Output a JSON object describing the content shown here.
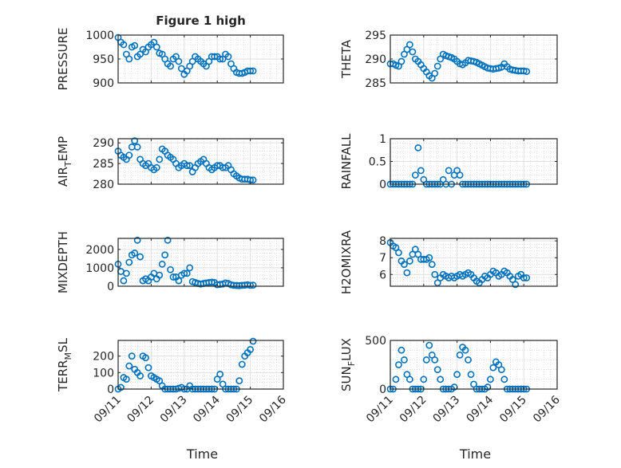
{
  "chart_data": [
    {
      "type": "scatter",
      "title": "Figure 1 high",
      "ylabel": "PRESSURE",
      "ylim": [
        900,
        1000
      ],
      "yticks": [
        900,
        950,
        1000
      ],
      "xlabel": "",
      "values": [
        995,
        985,
        980,
        960,
        950,
        975,
        978,
        955,
        960,
        970,
        965,
        975,
        980,
        985,
        975,
        962,
        960,
        950,
        940,
        935,
        950,
        955,
        945,
        930,
        918,
        925,
        935,
        945,
        955,
        950,
        945,
        940,
        935,
        945,
        955,
        955,
        955,
        950,
        950,
        960,
        955,
        940,
        930,
        922,
        920,
        920,
        922,
        925,
        925,
        925
      ]
    },
    {
      "type": "scatter",
      "title": "",
      "ylabel": "THETA",
      "ylim": [
        285,
        295
      ],
      "yticks": [
        285,
        290,
        295
      ],
      "xlabel": "",
      "values": [
        289,
        289,
        288.7,
        288.5,
        289.5,
        291,
        292,
        293,
        291.5,
        290,
        289.5,
        288.8,
        288,
        287.3,
        286.5,
        286,
        287,
        288.5,
        290,
        291,
        290.7,
        290.5,
        290.3,
        290,
        289.5,
        289,
        288.8,
        289.2,
        289.7,
        289.6,
        289.5,
        289.3,
        289,
        288.7,
        288.4,
        288.1,
        288,
        287.9,
        288,
        288.1,
        288.3,
        289,
        288.4,
        287.9,
        287.7,
        287.6,
        287.5,
        287.5,
        287.5,
        287.4
      ]
    },
    {
      "type": "scatter",
      "title": "",
      "ylabel": "AIR_TEMP",
      "ylim": [
        280,
        291
      ],
      "yticks": [
        280,
        285,
        290
      ],
      "xlabel": "",
      "values": [
        288,
        287,
        286.5,
        286,
        287,
        289,
        290.5,
        289,
        286,
        285,
        284.5,
        285,
        284,
        283.5,
        284,
        286,
        288.5,
        288,
        287,
        286.5,
        286,
        285,
        284,
        284.5,
        285,
        284.5,
        284.5,
        283,
        284,
        285,
        285.5,
        286,
        285,
        284,
        283.5,
        284,
        284.5,
        284.5,
        284,
        284,
        284.5,
        283.5,
        282.5,
        282,
        281.5,
        281.2,
        281.2,
        281.2,
        281,
        281
      ]
    },
    {
      "type": "scatter",
      "title": "",
      "ylabel": "RAINFALL",
      "ylim": [
        0,
        1
      ],
      "yticks": [
        0,
        0.5,
        1
      ],
      "xlabel": "",
      "values": [
        0,
        0,
        0,
        0,
        0,
        0,
        0,
        0,
        0,
        0.2,
        0.8,
        0.3,
        0.1,
        0,
        0,
        0,
        0,
        0,
        0,
        0.1,
        0,
        0.3,
        0,
        0.2,
        0.3,
        0.2,
        0,
        0,
        0,
        0,
        0,
        0,
        0,
        0,
        0,
        0,
        0,
        0,
        0,
        0,
        0,
        0,
        0,
        0,
        0,
        0,
        0,
        0,
        0,
        0
      ]
    },
    {
      "type": "scatter",
      "title": "",
      "ylabel": "MIXDEPTH",
      "ylim": [
        0,
        2600
      ],
      "yticks": [
        0,
        1000,
        2000
      ],
      "xlabel": "",
      "values": [
        1200,
        800,
        300,
        700,
        1300,
        1700,
        1800,
        2500,
        1600,
        300,
        400,
        300,
        500,
        700,
        400,
        600,
        1200,
        1700,
        2500,
        900,
        500,
        500,
        300,
        600,
        700,
        700,
        1000,
        250,
        200,
        150,
        120,
        150,
        180,
        200,
        220,
        200,
        80,
        100,
        120,
        180,
        150,
        80,
        50,
        40,
        30,
        50,
        60,
        80,
        50,
        60
      ]
    },
    {
      "type": "scatter",
      "title": "",
      "ylabel": "H2OMIXRA",
      "ylim": [
        5.3,
        8.15
      ],
      "yticks": [
        6,
        7,
        8
      ],
      "xlabel": "",
      "values": [
        7.9,
        7.7,
        7.6,
        7.3,
        6.8,
        6.6,
        6.1,
        6.8,
        7.2,
        7.5,
        7.2,
        6.9,
        6.9,
        6.9,
        7.0,
        6.6,
        6.0,
        5.5,
        5.8,
        6.0,
        5.9,
        5.8,
        5.9,
        5.8,
        5.9,
        6.0,
        5.9,
        6.0,
        6.1,
        6.0,
        5.8,
        5.6,
        5.5,
        5.7,
        5.9,
        5.8,
        6.0,
        6.2,
        6.1,
        5.9,
        6.0,
        6.2,
        6.1,
        5.9,
        5.7,
        5.4,
        5.9,
        6.0,
        5.8,
        5.8
      ]
    },
    {
      "type": "scatter",
      "title": "",
      "ylabel": "TERR_MSL",
      "ylim": [
        0,
        295
      ],
      "yticks": [
        0,
        100,
        200
      ],
      "xlabel": "Time",
      "values": [
        0,
        10,
        70,
        60,
        140,
        200,
        120,
        100,
        80,
        200,
        190,
        130,
        80,
        70,
        60,
        50,
        20,
        0,
        0,
        0,
        0,
        0,
        5,
        10,
        0,
        0,
        20,
        0,
        0,
        0,
        0,
        0,
        0,
        0,
        0,
        0,
        60,
        90,
        30,
        0,
        0,
        0,
        0,
        0,
        50,
        150,
        200,
        220,
        240,
        290
      ]
    },
    {
      "type": "scatter",
      "title": "",
      "ylabel": "SUN_FLUX",
      "ylim": [
        0,
        500
      ],
      "yticks": [
        0,
        500
      ],
      "xlabel": "Time",
      "values": [
        0,
        0,
        100,
        250,
        400,
        300,
        150,
        100,
        0,
        0,
        0,
        0,
        100,
        300,
        450,
        350,
        300,
        200,
        100,
        0,
        0,
        0,
        0,
        20,
        150,
        350,
        430,
        400,
        300,
        150,
        50,
        0,
        0,
        0,
        0,
        20,
        100,
        220,
        280,
        250,
        200,
        100,
        0,
        0,
        0,
        0,
        0,
        0,
        0,
        0
      ]
    }
  ],
  "x_axis": {
    "start_label": "09/11",
    "step_hours": 2,
    "xlim_days": [
      0,
      5
    ],
    "tick_labels": [
      "09/11",
      "09/12",
      "09/13",
      "09/14",
      "09/15",
      "09/16"
    ]
  },
  "colors": {
    "marker": "#0072BD",
    "axis": "#262626",
    "grid": "#DFDFDF",
    "background": "#FFFFFF"
  }
}
